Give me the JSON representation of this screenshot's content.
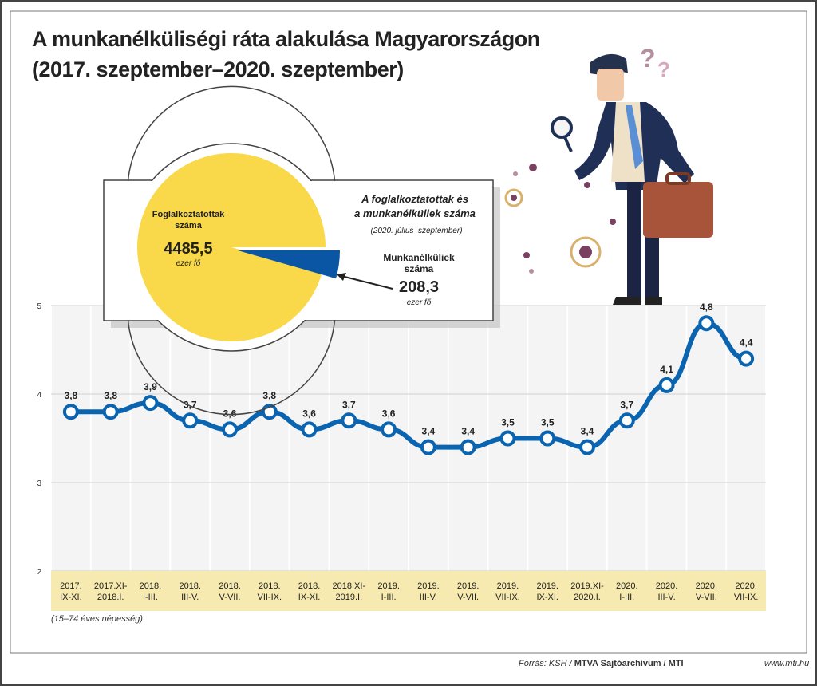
{
  "title_line1": "A munkanélküliségi ráta alakulása Magyarországon",
  "title_line2": "(2017. szeptember–2020. szeptember)",
  "chart_data": {
    "type": "line",
    "ylim": [
      2,
      5
    ],
    "yticks": [
      "2",
      "3",
      "4",
      "5"
    ],
    "categories": [
      [
        "2017.",
        "IX-XI."
      ],
      [
        "2017.XI-",
        "2018.I."
      ],
      [
        "2018.",
        "I-III."
      ],
      [
        "2018.",
        "III-V."
      ],
      [
        "2018.",
        "V-VII."
      ],
      [
        "2018.",
        "VII-IX."
      ],
      [
        "2018.",
        "IX-XI."
      ],
      [
        "2018.XI-",
        "2019.I."
      ],
      [
        "2019.",
        "I-III."
      ],
      [
        "2019.",
        "III-V."
      ],
      [
        "2019.",
        "V-VII."
      ],
      [
        "2019.",
        "VII-IX."
      ],
      [
        "2019.",
        "IX-XI."
      ],
      [
        "2019.XI-",
        "2020.I."
      ],
      [
        "2020.",
        "I-III."
      ],
      [
        "2020.",
        "III-V."
      ],
      [
        "2020.",
        "V-VII."
      ],
      [
        "2020.",
        "VII-IX."
      ]
    ],
    "values": [
      3.8,
      3.8,
      3.9,
      3.7,
      3.6,
      3.8,
      3.6,
      3.7,
      3.6,
      3.4,
      3.4,
      3.5,
      3.5,
      3.4,
      3.7,
      4.1,
      4.8,
      4.4
    ],
    "labels": [
      "3,8",
      "3,8",
      "3,9",
      "3,7",
      "3,6",
      "3,8",
      "3,6",
      "3,7",
      "3,6",
      "3,4",
      "3,4",
      "3,5",
      "3,5",
      "3,4",
      "3,7",
      "4,1",
      "4,8",
      "4,4"
    ],
    "note": "(15–74 éves népesség)"
  },
  "pie": {
    "title_line1": "A foglalkoztatottak és",
    "title_line2": "a munkanélküliek száma",
    "period": "(2020. július–szeptember)",
    "employed_label_1": "Foglalkoztatottak",
    "employed_label_2": "száma",
    "employed_value": "4485,5",
    "employed_unit": "ezer fő",
    "unemployed_label_1": "Munkanélküliek",
    "unemployed_label_2": "száma",
    "unemployed_value": "208,3",
    "unemployed_unit": "ezer fő",
    "employed": 4485.5,
    "unemployed": 208.3
  },
  "colors": {
    "line": "#0a64b0",
    "pie_main": "#f9d84a",
    "pie_slice": "#0b56a4",
    "band": "#f7eab0"
  },
  "footer": {
    "source": "Forrás: KSH / ",
    "source_bold": "MTVA Sajtóarchívum / MTI",
    "url": "www.mti.hu"
  }
}
